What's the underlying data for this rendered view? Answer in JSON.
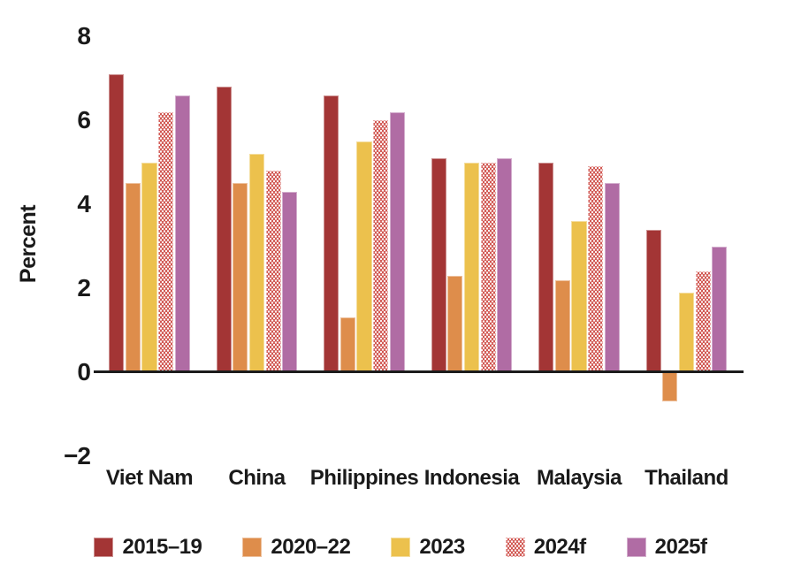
{
  "chart_data": {
    "type": "bar",
    "title": "",
    "ylabel": "Percent",
    "ylim": [
      -2,
      8
    ],
    "yticks": [
      8,
      6,
      4,
      2,
      0,
      -2
    ],
    "grid": false,
    "legend_position": "bottom",
    "categories": [
      "Viet Nam",
      "China",
      "Philippines",
      "Indonesia",
      "Malaysia",
      "Thailand"
    ],
    "series": [
      {
        "name": "2015–19",
        "color": "#A33535",
        "pattern": false,
        "values": [
          7.1,
          6.8,
          6.6,
          5.1,
          5.0,
          3.4
        ]
      },
      {
        "name": "2020–22",
        "color": "#DE8D4B",
        "pattern": false,
        "values": [
          4.5,
          4.5,
          1.3,
          2.3,
          2.2,
          -0.7
        ]
      },
      {
        "name": "2023",
        "color": "#ECC14D",
        "pattern": false,
        "values": [
          5.0,
          5.2,
          5.5,
          5.0,
          3.6,
          1.9
        ]
      },
      {
        "name": "2024f",
        "color": "#C93A33",
        "pattern": true,
        "values": [
          6.2,
          4.8,
          6.0,
          5.0,
          4.9,
          2.4
        ]
      },
      {
        "name": "2025f",
        "color": "#B06CA4",
        "pattern": false,
        "values": [
          6.6,
          4.3,
          6.2,
          5.1,
          4.5,
          3.0
        ]
      }
    ]
  }
}
